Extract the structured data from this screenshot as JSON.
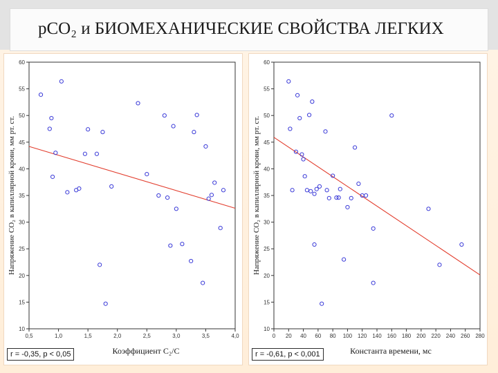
{
  "slide": {
    "title": "рСО₂ и БИОМЕХАНИЧЕСКИЕ СВОЙСТВА ЛЕГКИХ"
  },
  "colors": {
    "point": "#3a3ad8",
    "trend": "#e23c2c",
    "text": "#1a1a1a"
  },
  "chart_data": [
    {
      "type": "scatter",
      "xlabel": "Коэффициент С₂/С",
      "ylabel": "Напряжение СО₂ в капиллярной крови, мм рт. ст.",
      "stat": "r = -0,35, p < 0,05",
      "xlim": [
        0.5,
        4.0
      ],
      "ylim": [
        10,
        60
      ],
      "xticks": [
        0.5,
        1.0,
        1.5,
        2.0,
        2.5,
        3.0,
        3.5,
        4.0
      ],
      "xtick_labels": [
        "0,5",
        "1,0",
        "1,5",
        "2,0",
        "2,5",
        "3,0",
        "3,5",
        "4,0"
      ],
      "yticks": [
        10,
        15,
        20,
        25,
        30,
        35,
        40,
        45,
        50,
        55,
        60
      ],
      "grid": false,
      "trend": {
        "x": [
          0.5,
          4.0
        ],
        "y": [
          44.2,
          32.6
        ]
      },
      "x": [
        0.7,
        1.05,
        0.85,
        0.88,
        0.9,
        0.95,
        1.15,
        1.3,
        1.35,
        1.45,
        1.5,
        1.65,
        1.7,
        1.75,
        1.8,
        1.9,
        2.35,
        2.5,
        2.7,
        2.8,
        2.85,
        2.9,
        2.95,
        3.0,
        3.1,
        3.25,
        3.3,
        3.35,
        3.45,
        3.5,
        3.55,
        3.6,
        3.65,
        3.75,
        3.8
      ],
      "y": [
        53.9,
        56.4,
        47.5,
        49.5,
        38.5,
        43.0,
        35.6,
        36.0,
        36.3,
        42.8,
        47.4,
        42.8,
        22.0,
        46.9,
        14.7,
        36.7,
        52.3,
        39.0,
        35.0,
        50.0,
        34.6,
        25.6,
        48.0,
        32.5,
        25.9,
        22.7,
        46.9,
        50.1,
        18.6,
        44.2,
        34.4,
        35.1,
        37.4,
        28.9,
        36.0
      ]
    },
    {
      "type": "scatter",
      "xlabel": "Константа времени, мс",
      "ylabel": "Напряжение СО₂ в капиллярной крови, мм рт. ст.",
      "stat": "r = -0,61, p < 0,001",
      "xlim": [
        0,
        280
      ],
      "ylim": [
        10,
        60
      ],
      "xticks": [
        0,
        20,
        40,
        60,
        80,
        100,
        120,
        140,
        160,
        180,
        200,
        220,
        240,
        260,
        280
      ],
      "xtick_labels": [
        "0",
        "20",
        "40",
        "60",
        "80",
        "100",
        "120",
        "140",
        "160",
        "180",
        "200",
        "220",
        "240",
        "260",
        "280"
      ],
      "yticks": [
        10,
        15,
        20,
        25,
        30,
        35,
        40,
        45,
        50,
        55,
        60
      ],
      "grid": false,
      "trend": {
        "x": [
          0,
          280
        ],
        "y": [
          45.9,
          20.1
        ]
      },
      "x": [
        20,
        22,
        25,
        30,
        32,
        35,
        38,
        40,
        42,
        45,
        48,
        50,
        52,
        55,
        55,
        58,
        62,
        65,
        70,
        72,
        75,
        80,
        85,
        88,
        90,
        95,
        100,
        105,
        110,
        115,
        120,
        125,
        135,
        135,
        160,
        210,
        225,
        255
      ],
      "y": [
        56.4,
        47.5,
        36.0,
        43.2,
        53.8,
        49.5,
        42.7,
        41.8,
        38.6,
        36.0,
        50.1,
        35.8,
        52.6,
        25.8,
        35.3,
        36.2,
        36.7,
        14.7,
        47.0,
        36.0,
        34.5,
        38.7,
        34.6,
        34.6,
        36.2,
        23.0,
        32.8,
        34.5,
        44.0,
        37.2,
        35.0,
        35.0,
        28.8,
        18.6,
        50.0,
        32.5,
        22.0,
        25.8
      ]
    }
  ]
}
